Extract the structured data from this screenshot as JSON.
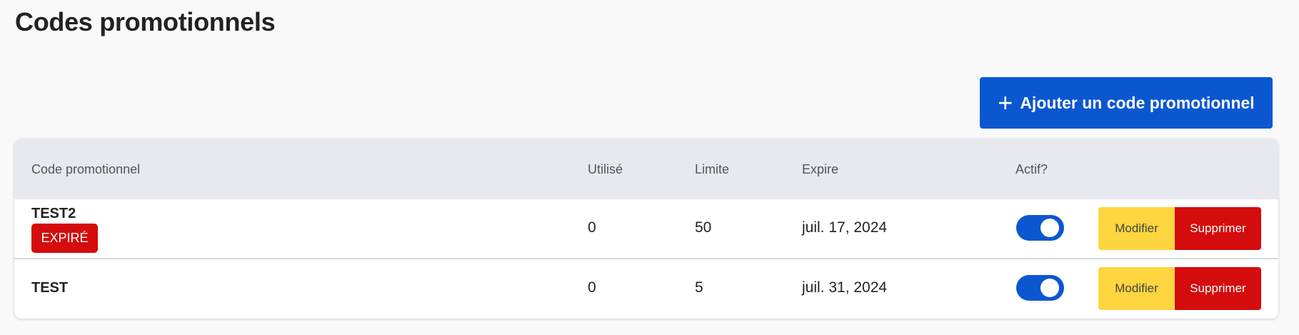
{
  "page": {
    "title": "Codes promotionnels"
  },
  "toolbar": {
    "add_label": "Ajouter un code promotionnel",
    "add_icon": "plus-icon"
  },
  "table": {
    "headers": [
      "Code promotionnel",
      "Utilisé",
      "Limite",
      "Expire",
      "Actif?"
    ],
    "rows": [
      {
        "code": "TEST2",
        "badge": "EXPIRÉ",
        "used": "0",
        "limit": "50",
        "expires": "juil. 17, 2024",
        "active": true,
        "edit": "Modifier",
        "delete": "Supprimer"
      },
      {
        "code": "TEST",
        "used": "0",
        "limit": "5",
        "expires": "juil. 31, 2024",
        "active": true,
        "edit": "Modifier",
        "delete": "Supprimer"
      }
    ]
  },
  "colors": {
    "primary": "#0b57d0",
    "warning": "#fdd53f",
    "danger": "#d40c0c"
  }
}
